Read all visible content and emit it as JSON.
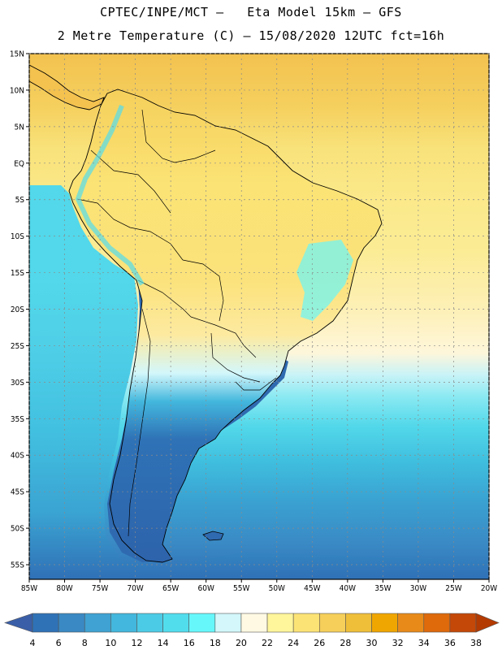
{
  "header": {
    "title_line1": "CPTEC/INPE/MCT –   Eta Model 15km – GFS",
    "title_line2": "2 Metre Temperature (C) – 15/08/2020 12UTC fct=16h"
  },
  "map": {
    "lat_labels": [
      "15N",
      "10N",
      "5N",
      "EQ",
      "5S",
      "10S",
      "15S",
      "20S",
      "25S",
      "30S",
      "35S",
      "40S",
      "45S",
      "50S",
      "55S"
    ],
    "lon_labels": [
      "85W",
      "80W",
      "75W",
      "70W",
      "65W",
      "60W",
      "55W",
      "50W",
      "45W",
      "40W",
      "35W",
      "30W",
      "25W",
      "20W"
    ],
    "lat_range": [
      15,
      -57
    ],
    "lon_range": [
      -85,
      -20
    ],
    "grid": true,
    "ocean_gradient": [
      {
        "lat": 15,
        "color": "#f3c24f"
      },
      {
        "lat": 8,
        "color": "#f5cf5d"
      },
      {
        "lat": 2,
        "color": "#f8e27a"
      },
      {
        "lat": -5,
        "color": "#fbe98a"
      },
      {
        "lat": -12,
        "color": "#fbec95"
      },
      {
        "lat": -20,
        "color": "#fdf0b6"
      },
      {
        "lat": -26,
        "color": "#fef6da"
      },
      {
        "lat": -29,
        "color": "#c8f3f7"
      },
      {
        "lat": -32,
        "color": "#8ae9f2"
      },
      {
        "lat": -36,
        "color": "#52d8ea"
      },
      {
        "lat": -41,
        "color": "#3fbede"
      },
      {
        "lat": -46,
        "color": "#3aa3d2"
      },
      {
        "lat": -52,
        "color": "#3a8ac5"
      },
      {
        "lat": -57,
        "color": "#3070b6"
      }
    ],
    "pacific_gradient": [
      {
        "lat": -2,
        "color": "#52d8ea"
      },
      {
        "lat": -15,
        "color": "#4fcfe7"
      },
      {
        "lat": -30,
        "color": "#42c0e0"
      },
      {
        "lat": -45,
        "color": "#3aa3d2"
      },
      {
        "lat": -57,
        "color": "#3070b6"
      }
    ]
  },
  "colorbar": {
    "levels": [
      "4",
      "6",
      "8",
      "10",
      "12",
      "14",
      "16",
      "18",
      "20",
      "22",
      "24",
      "26",
      "28",
      "30",
      "32",
      "34",
      "36",
      "38"
    ],
    "colors": [
      "#3a5fa8",
      "#2f72b6",
      "#3a89c4",
      "#3fa2d2",
      "#43b7dd",
      "#4ccbe6",
      "#52dded",
      "#66f7fb",
      "#d3f7fb",
      "#fff9e3",
      "#fff59b",
      "#fbe375",
      "#f5cf5a",
      "#efbf3a",
      "#f0a600",
      "#e88a1a",
      "#de6a0c",
      "#c44808",
      "#b33a00"
    ]
  }
}
